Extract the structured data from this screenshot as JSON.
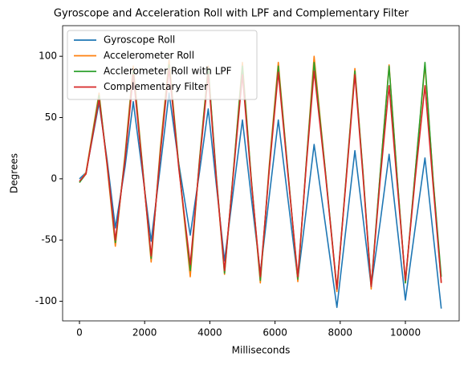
{
  "chart_data": {
    "type": "line",
    "title": "Gyroscope and Acceleration Roll with LPF and Complementary Filter",
    "x_label": "Milliseconds",
    "y_label": "Degrees",
    "x": [
      0,
      200,
      600,
      850,
      1100,
      1400,
      1650,
      1920,
      2200,
      2480,
      2750,
      3050,
      3400,
      3680,
      3950,
      4200,
      4450,
      4720,
      5000,
      5270,
      5550,
      5820,
      6100,
      6400,
      6700,
      6950,
      7200,
      7550,
      7900,
      8180,
      8450,
      8700,
      8950,
      9230,
      9500,
      9750,
      10000,
      10300,
      10600,
      10850,
      11100
    ],
    "series": [
      {
        "name": "Gyroscope Roll",
        "color": "#1f77b4",
        "values": [
          0,
          5,
          62,
          15,
          -40,
          10,
          63,
          8,
          -51,
          10,
          70,
          12,
          -46,
          5,
          57,
          -5,
          -67,
          -10,
          48,
          -15,
          -77,
          -15,
          48,
          -17,
          -82,
          -27,
          28,
          -38,
          -105,
          -40,
          23,
          -32,
          -88,
          -35,
          20,
          -40,
          -99,
          -40,
          17,
          -45,
          -106
        ]
      },
      {
        "name": "Accelerometer Roll",
        "color": "#ff7f0e",
        "values": [
          -3,
          5,
          70,
          10,
          -55,
          20,
          92,
          15,
          -68,
          25,
          97,
          10,
          -80,
          15,
          92,
          0,
          -78,
          5,
          95,
          0,
          -85,
          10,
          95,
          5,
          -84,
          10,
          100,
          5,
          -92,
          0,
          90,
          5,
          -90,
          5,
          93,
          0,
          -85,
          5,
          93,
          0,
          -85
        ]
      },
      {
        "name": "Acclerometer Roll with LPF",
        "color": "#2ca02c",
        "values": [
          -3,
          4,
          68,
          12,
          -52,
          18,
          88,
          14,
          -65,
          22,
          93,
          10,
          -75,
          14,
          90,
          2,
          -77,
          5,
          92,
          0,
          -83,
          8,
          92,
          5,
          -82,
          10,
          95,
          5,
          -90,
          0,
          88,
          5,
          -88,
          5,
          92,
          0,
          -85,
          5,
          95,
          0,
          -80
        ]
      },
      {
        "name": "Complementary Filter",
        "color": "#d62728",
        "values": [
          -2,
          4,
          65,
          12,
          -50,
          16,
          85,
          12,
          -63,
          20,
          90,
          8,
          -70,
          12,
          85,
          0,
          -75,
          3,
          85,
          -2,
          -80,
          6,
          87,
          3,
          -80,
          8,
          88,
          3,
          -90,
          -2,
          85,
          2,
          -88,
          0,
          76,
          -5,
          -83,
          0,
          76,
          -5,
          -85
        ]
      }
    ],
    "xlim": [
      -517,
      11650
    ],
    "ylim": [
      -116,
      125
    ],
    "xticks": [
      0,
      2000,
      4000,
      6000,
      8000,
      10000
    ],
    "yticks": [
      -100,
      -50,
      0,
      50,
      100
    ],
    "legend": "upper left",
    "grid": false
  }
}
